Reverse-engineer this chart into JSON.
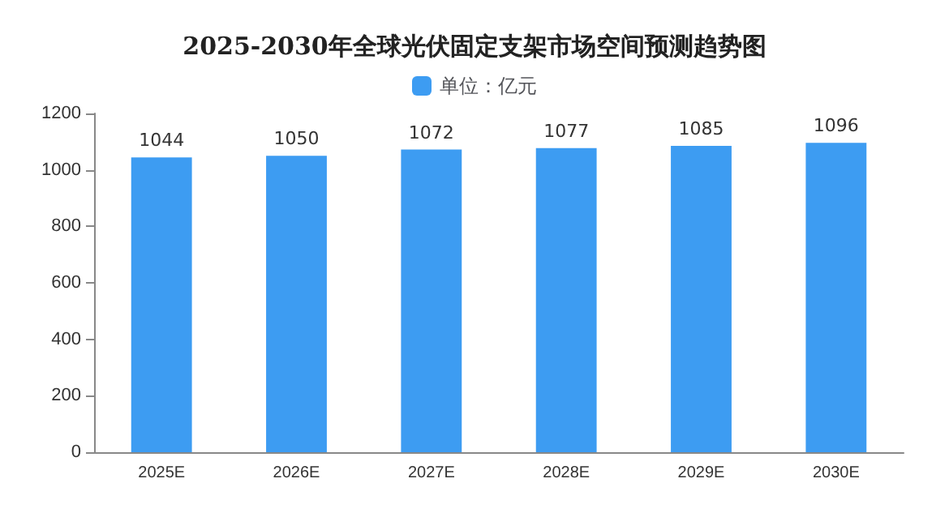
{
  "chart_data": {
    "type": "bar",
    "title": "2025-2030年全球光伏固定支架市场空间预测趋势图",
    "categories": [
      "2025E",
      "2026E",
      "2027E",
      "2028E",
      "2029E",
      "2030E"
    ],
    "series": [
      {
        "name": "单位：亿元",
        "color": "#3d9cf2",
        "values": [
          1044,
          1050,
          1072,
          1077,
          1085,
          1096
        ]
      }
    ],
    "ylim": [
      0,
      1200
    ],
    "yticks": [
      0,
      200,
      400,
      600,
      800,
      1000,
      1200
    ],
    "grid": false,
    "legend": "top",
    "data_labels": true
  }
}
